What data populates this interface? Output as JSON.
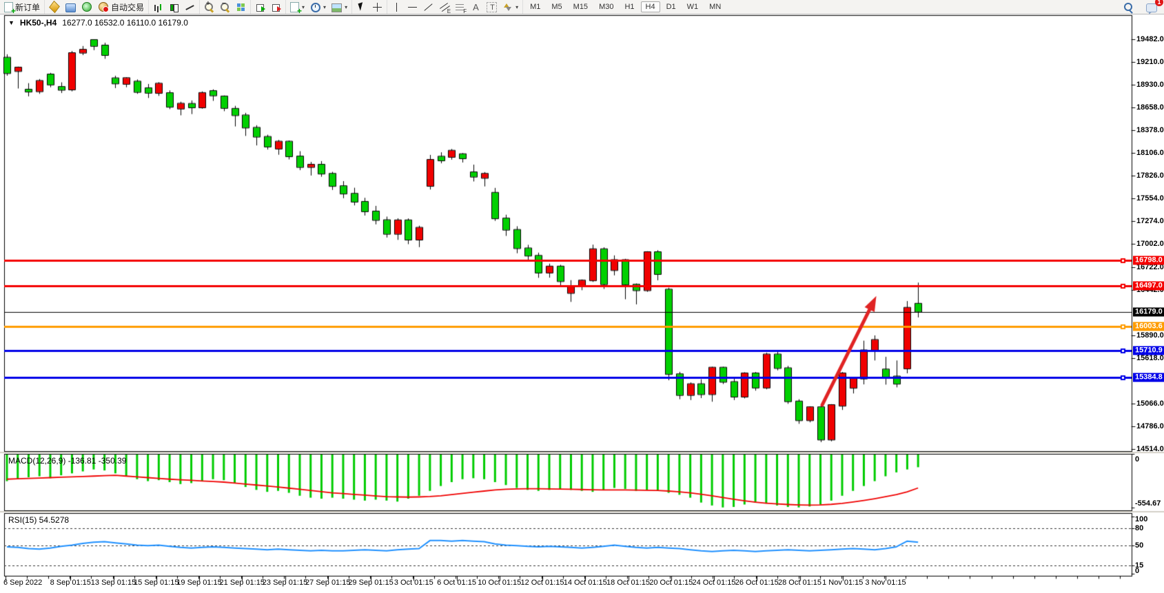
{
  "toolbar": {
    "groups": [
      {
        "items": [
          {
            "name": "new-order",
            "icon": "doc-plus",
            "label": "新订单"
          }
        ]
      },
      {
        "items": [
          {
            "name": "market-watch",
            "icon": "gold"
          },
          {
            "name": "data-window",
            "icon": "terminal"
          },
          {
            "name": "navigator",
            "icon": "signal"
          },
          {
            "name": "autotrading",
            "icon": "auto",
            "label": "自动交易"
          }
        ]
      },
      {
        "items": [
          {
            "name": "bar-chart",
            "icon": "bars"
          },
          {
            "name": "candlestick-chart",
            "icon": "candles"
          },
          {
            "name": "line-chart",
            "icon": "linechart"
          }
        ]
      },
      {
        "items": [
          {
            "name": "zoom-in",
            "icon": "zoomin"
          },
          {
            "name": "zoom-out",
            "icon": "zoomout"
          },
          {
            "name": "tile-windows",
            "icon": "tile"
          }
        ]
      },
      {
        "items": [
          {
            "name": "auto-scroll",
            "icon": "play-g"
          },
          {
            "name": "chart-shift",
            "icon": "play-r"
          }
        ]
      },
      {
        "items": [
          {
            "name": "new-chart",
            "icon": "doc-plus",
            "caret": true
          },
          {
            "name": "periods",
            "icon": "clock",
            "caret": true
          },
          {
            "name": "templates",
            "icon": "template",
            "caret": true
          }
        ]
      },
      {
        "items": [
          {
            "name": "cursor",
            "icon": "cursor"
          },
          {
            "name": "crosshair",
            "icon": "cross"
          }
        ]
      },
      {
        "items": [
          {
            "name": "vertical-line",
            "icon": "vline"
          },
          {
            "name": "horizontal-line",
            "icon": "hline"
          },
          {
            "name": "trendline",
            "icon": "diag"
          },
          {
            "name": "equidistant-channel",
            "icon": "channel"
          },
          {
            "name": "fibonacci",
            "icon": "fibo"
          },
          {
            "name": "text",
            "icon": "textA"
          },
          {
            "name": "text-label",
            "icon": "labelT"
          },
          {
            "name": "arrows",
            "icon": "arrows",
            "caret": true
          }
        ]
      }
    ],
    "timeframes": [
      {
        "label": "M1"
      },
      {
        "label": "M5"
      },
      {
        "label": "M15"
      },
      {
        "label": "M30"
      },
      {
        "label": "H1"
      },
      {
        "label": "H4",
        "active": true
      },
      {
        "label": "D1"
      },
      {
        "label": "W1"
      },
      {
        "label": "MN"
      }
    ],
    "right": [
      {
        "name": "search",
        "icon": "search"
      },
      {
        "name": "notifications",
        "icon": "chat",
        "badge": "1"
      }
    ]
  },
  "chart": {
    "symbol_line": {
      "collapse": "▼",
      "title": "HK50-,H4",
      "ohlc": "16277.0 16532.0 16110.0 16179.0"
    },
    "price_axis_ticks": [
      {
        "t": "19482.0",
        "v": 19482
      },
      {
        "t": "19210.0",
        "v": 19210
      },
      {
        "t": "18930.0",
        "v": 18930
      },
      {
        "t": "18658.0",
        "v": 18658
      },
      {
        "t": "18378.0",
        "v": 18378
      },
      {
        "t": "18106.0",
        "v": 18106
      },
      {
        "t": "17826.0",
        "v": 17826
      },
      {
        "t": "17554.0",
        "v": 17554
      },
      {
        "t": "17274.0",
        "v": 17274
      },
      {
        "t": "17002.0",
        "v": 17002
      },
      {
        "t": "16722.0",
        "v": 16722
      },
      {
        "t": "16442.0",
        "v": 16442
      },
      {
        "t": "15890.0",
        "v": 15890
      },
      {
        "t": "15618.0",
        "v": 15618
      },
      {
        "t": "15066.0",
        "v": 15066
      },
      {
        "t": "14786.0",
        "v": 14786
      },
      {
        "t": "14514.0",
        "v": 14514
      }
    ],
    "time_axis_labels": [
      "6 Sep 2022",
      "8 Sep 01:15",
      "13 Sep 01:15",
      "15 Sep 01:15",
      "19 Sep 01:15",
      "21 Sep 01:15",
      "23 Sep 01:15",
      "27 Sep 01:15",
      "29 Sep 01:15",
      "3 Oct 01:15",
      "6 Oct 01:15",
      "10 Oct 01:15",
      "12 Oct 01:15",
      "14 Oct 01:15",
      "18 Oct 01:15",
      "20 Oct 01:15",
      "24 Oct 01:15",
      "26 Oct 01:15",
      "28 Oct 01:15",
      "1 Nov 01:15",
      "3 Nov 01:15"
    ],
    "macd_panel": {
      "label": "MACD(12,26,9) -136.81 -350.39",
      "axis": [
        {
          "t": "0",
          "v": 0
        },
        {
          "t": "-554.67",
          "v": -554.67
        }
      ]
    },
    "rsi_panel": {
      "label": "RSI(15) 54.5278",
      "axis": [
        {
          "t": "100",
          "v": 100
        },
        {
          "t": "80",
          "v": 80
        },
        {
          "t": "50",
          "v": 50
        },
        {
          "t": "15",
          "v": 15
        },
        {
          "t": "0",
          "v": 0
        }
      ]
    }
  },
  "chart_data": {
    "type": "candlestick",
    "symbol": "HK50-",
    "timeframe": "H4",
    "current_bar": {
      "open": 16277.0,
      "high": 16532.0,
      "low": 16110.0,
      "close": 16179.0
    },
    "price_range": [
      14514.0,
      19482.0
    ],
    "colors": {
      "bull": "#f00000",
      "bear": "#00d000",
      "outline": "#000000",
      "macd_bar": "#00cc00",
      "macd_signal": "#f00000",
      "rsi_line": "#1e90ff",
      "arrow": "#e02424",
      "red_line": "#f40000",
      "orange_line": "#ff9c00",
      "blue_line": "#0000e8",
      "black_line": "#000000"
    },
    "hlines": [
      {
        "price": 16798.0,
        "badge": "16798.0",
        "color": "#f40000",
        "width": 3,
        "marker": true
      },
      {
        "price": 16497.0,
        "badge": "16497.0",
        "color": "#f40000",
        "width": 3,
        "marker": true
      },
      {
        "price": 16179.0,
        "badge": "16179.0",
        "color": "#000000",
        "width": 1,
        "marker": false
      },
      {
        "price": 16003.6,
        "badge": "16003.6",
        "color": "#ff9c00",
        "width": 3,
        "marker": true
      },
      {
        "price": 15710.9,
        "badge": "15710.9",
        "color": "#0000e8",
        "width": 3,
        "marker": true
      },
      {
        "price": 15384.8,
        "badge": "15384.8",
        "color": "#0000e8",
        "width": 3,
        "marker": true
      }
    ],
    "candles": [
      [
        19260,
        19300,
        19040,
        19070
      ],
      [
        19095,
        19150,
        18885,
        19140
      ],
      [
        18872,
        18950,
        18790,
        18846
      ],
      [
        18850,
        19000,
        18820,
        18978
      ],
      [
        19056,
        19075,
        18900,
        18932
      ],
      [
        18905,
        18960,
        18830,
        18868
      ],
      [
        18872,
        19340,
        18850,
        19315
      ],
      [
        19318,
        19400,
        19290,
        19356
      ],
      [
        19474,
        19482,
        19350,
        19400
      ],
      [
        19407,
        19440,
        19245,
        19290
      ],
      [
        19010,
        19040,
        18890,
        18945
      ],
      [
        18940,
        19020,
        18900,
        19012
      ],
      [
        18970,
        18995,
        18820,
        18842
      ],
      [
        18890,
        18940,
        18770,
        18832
      ],
      [
        18830,
        18962,
        18795,
        18945
      ],
      [
        18830,
        18862,
        18635,
        18662
      ],
      [
        18640,
        18725,
        18560,
        18702
      ],
      [
        18700,
        18740,
        18575,
        18655
      ],
      [
        18655,
        18850,
        18640,
        18832
      ],
      [
        18855,
        18875,
        18735,
        18800
      ],
      [
        18790,
        18800,
        18610,
        18648
      ],
      [
        18640,
        18675,
        18425,
        18560
      ],
      [
        18560,
        18590,
        18310,
        18410
      ],
      [
        18410,
        18440,
        18195,
        18300
      ],
      [
        18300,
        18325,
        18145,
        18180
      ],
      [
        18155,
        18262,
        18082,
        18242
      ],
      [
        18242,
        18255,
        18025,
        18062
      ],
      [
        18062,
        18125,
        17895,
        17932
      ],
      [
        17932,
        17995,
        17830,
        17962
      ],
      [
        17962,
        18005,
        17815,
        17852
      ],
      [
        17852,
        17875,
        17655,
        17702
      ],
      [
        17702,
        17762,
        17555,
        17610
      ],
      [
        17610,
        17682,
        17468,
        17512
      ],
      [
        17512,
        17560,
        17345,
        17395
      ],
      [
        17395,
        17462,
        17238,
        17290
      ],
      [
        17290,
        17332,
        17078,
        17122
      ],
      [
        17122,
        17312,
        17050,
        17288
      ],
      [
        17288,
        17310,
        16998,
        17052
      ],
      [
        17052,
        17222,
        16962,
        17198
      ],
      [
        17703,
        18080,
        17660,
        18021
      ],
      [
        18060,
        18112,
        17978,
        18012
      ],
      [
        18055,
        18152,
        18022,
        18132
      ],
      [
        18090,
        18102,
        17988,
        18038
      ],
      [
        17870,
        17962,
        17758,
        17815
      ],
      [
        17800,
        17872,
        17698,
        17852
      ],
      [
        17622,
        17680,
        17280,
        17310
      ],
      [
        17310,
        17355,
        17098,
        17172
      ],
      [
        17172,
        17215,
        16888,
        16948
      ],
      [
        16948,
        16990,
        16788,
        16858
      ],
      [
        16858,
        16895,
        16590,
        16652
      ],
      [
        16652,
        16762,
        16592,
        16728
      ],
      [
        16728,
        16748,
        16478,
        16548
      ],
      [
        16405,
        16562,
        16298,
        16488
      ],
      [
        16490,
        16570,
        16440,
        16558
      ],
      [
        16558,
        16992,
        16540,
        16938
      ],
      [
        16938,
        16960,
        16455,
        16512
      ],
      [
        16682,
        16862,
        16620,
        16806
      ],
      [
        16806,
        16820,
        16330,
        16508
      ],
      [
        16508,
        16522,
        16268,
        16438
      ],
      [
        16438,
        16912,
        16420,
        16902
      ],
      [
        16902,
        16925,
        16560,
        16635
      ],
      [
        16448,
        16470,
        15348,
        15422
      ],
      [
        15422,
        15450,
        15118,
        15168
      ],
      [
        15168,
        15322,
        15108,
        15302
      ],
      [
        15302,
        15360,
        15132,
        15178
      ],
      [
        15178,
        15512,
        15088,
        15502
      ],
      [
        15502,
        15512,
        15302,
        15328
      ],
      [
        15328,
        15372,
        15108,
        15148
      ],
      [
        15148,
        15445,
        15128,
        15432
      ],
      [
        15432,
        15448,
        15222,
        15258
      ],
      [
        15258,
        15682,
        15238,
        15662
      ],
      [
        15662,
        15712,
        15468,
        15495
      ],
      [
        15495,
        15522,
        15062,
        15092
      ],
      [
        15092,
        15118,
        14820,
        14862
      ],
      [
        14862,
        15032,
        14838,
        15022
      ],
      [
        15022,
        15048,
        14598,
        14628
      ],
      [
        14628,
        15058,
        14608,
        15048
      ],
      [
        15038,
        15448,
        14988,
        15432
      ],
      [
        15255,
        15372,
        15188,
        15368
      ],
      [
        15368,
        15828,
        15298,
        15712
      ],
      [
        15712,
        15892,
        15588,
        15838
      ],
      [
        15480,
        15632,
        15295,
        15388
      ],
      [
        15395,
        15588,
        15262,
        15305
      ],
      [
        15490,
        16308,
        15432,
        16228
      ],
      [
        16277,
        16532,
        16110,
        16179
      ]
    ],
    "macd": {
      "params": "12,26,9",
      "current": [
        -136.81,
        -350.39
      ],
      "range": [
        0,
        -554.67
      ],
      "histogram": [
        -280,
        -260,
        -240,
        -230,
        -250,
        -220,
        -200,
        -180,
        -160,
        -170,
        -200,
        -230,
        -260,
        -280,
        -270,
        -290,
        -310,
        -300,
        -280,
        -260,
        -270,
        -300,
        -340,
        -370,
        -390,
        -380,
        -400,
        -430,
        -450,
        -460,
        -450,
        -460,
        -470,
        -480,
        -470,
        -480,
        -490,
        -460,
        -430,
        -380,
        -330,
        -290,
        -260,
        -250,
        -260,
        -290,
        -320,
        -350,
        -370,
        -380,
        -370,
        -360,
        -370,
        -380,
        -390,
        -370,
        -350,
        -360,
        -380,
        -370,
        -380,
        -400,
        -420,
        -450,
        -500,
        -530,
        -550,
        -545,
        -520,
        -500,
        -510,
        -530,
        -545,
        -550,
        -540,
        -520,
        -480,
        -430,
        -380,
        -330,
        -280,
        -230,
        -190,
        -160,
        -137
      ],
      "signal_line": [
        -260,
        -256,
        -252,
        -248,
        -244,
        -240,
        -236,
        -232,
        -228,
        -224,
        -220,
        -228,
        -236,
        -244,
        -252,
        -260,
        -266,
        -272,
        -278,
        -284,
        -290,
        -300,
        -310,
        -320,
        -330,
        -340,
        -352,
        -364,
        -376,
        -388,
        -400,
        -408,
        -416,
        -424,
        -432,
        -440,
        -442,
        -444,
        -442,
        -438,
        -430,
        -418,
        -406,
        -394,
        -382,
        -370,
        -364,
        -360,
        -358,
        -358,
        -360,
        -362,
        -364,
        -366,
        -368,
        -370,
        -370,
        -370,
        -372,
        -374,
        -376,
        -382,
        -390,
        -400,
        -414,
        -430,
        -448,
        -466,
        -482,
        -496,
        -506,
        -514,
        -520,
        -524,
        -526,
        -524,
        -518,
        -508,
        -494,
        -478,
        -460,
        -440,
        -418,
        -390,
        -350
      ]
    },
    "rsi": {
      "period": 15,
      "current": 54.5278,
      "levels": [
        80,
        50,
        15
      ],
      "series": [
        47,
        46,
        44,
        43,
        45,
        48,
        50,
        53,
        55,
        56,
        54,
        52,
        50,
        49,
        50,
        48,
        46,
        45,
        46,
        47,
        46,
        45,
        44,
        43,
        42,
        43,
        42,
        41,
        40,
        41,
        40,
        40,
        41,
        42,
        41,
        40,
        42,
        43,
        44,
        58,
        58,
        57,
        58,
        57,
        56,
        52,
        50,
        49,
        48,
        47,
        48,
        47,
        46,
        45,
        46,
        48,
        50,
        48,
        46,
        45,
        46,
        45,
        44,
        42,
        40,
        39,
        40,
        41,
        40,
        39,
        40,
        41,
        42,
        41,
        40,
        41,
        42,
        43,
        44,
        43,
        42,
        44,
        47,
        57,
        55
      ]
    },
    "arrow": {
      "from": [
        1193,
        588
      ],
      "to": [
        1268,
        437
      ]
    }
  }
}
